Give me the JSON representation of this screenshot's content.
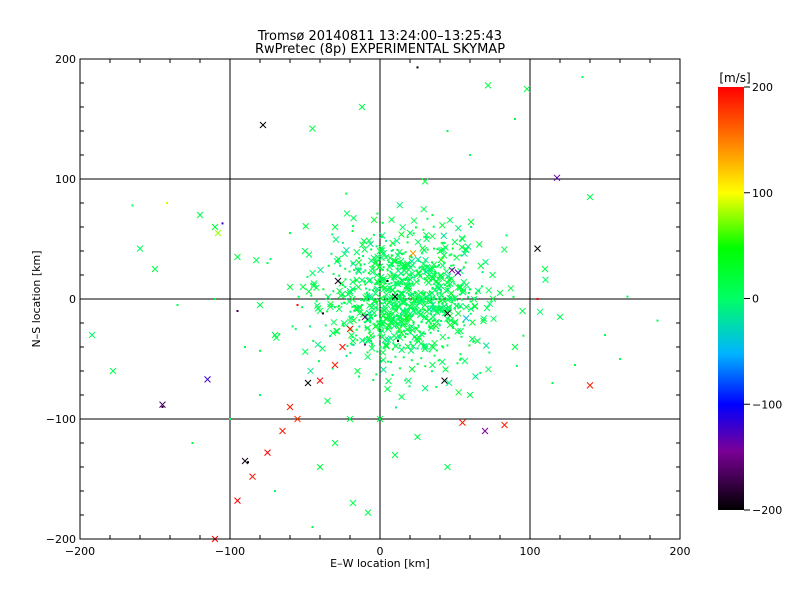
{
  "chart_data": {
    "type": "scatter",
    "title": "Tromsø 20140811 13:24:00–13:25:43",
    "subtitle": "RwPretec (8p) EXPERIMENTAL SKYMAP",
    "xlabel": "E–W location [km]",
    "ylabel": "N–S location [km]",
    "xlim": [
      -200,
      200
    ],
    "ylim": [
      -200,
      200
    ],
    "xticks": [
      "−200",
      "−100",
      "0",
      "100",
      "200"
    ],
    "yticks": [
      "−200",
      "−100",
      "0",
      "100",
      "200"
    ],
    "grid": true,
    "colorbar": {
      "unit": "[m/s]",
      "range": [
        -200,
        200
      ],
      "ticks": [
        "−200",
        "−100",
        "0",
        "100",
        "200"
      ]
    },
    "marker_types": [
      "x",
      "dot"
    ],
    "series": [
      {
        "marker": "x",
        "points": [
          [
            -192,
            -30,
            0
          ],
          [
            -178,
            -60,
            10
          ],
          [
            -160,
            42,
            5
          ],
          [
            -108,
            55,
            80
          ],
          [
            -90,
            -135,
            -190
          ],
          [
            -78,
            145,
            -200
          ],
          [
            -45,
            142,
            15
          ],
          [
            -12,
            160,
            10
          ],
          [
            30,
            98,
            20
          ],
          [
            98,
            175,
            15
          ],
          [
            118,
            101,
            -130
          ],
          [
            140,
            85,
            10
          ],
          [
            105,
            42,
            -200
          ],
          [
            72,
            178,
            15
          ],
          [
            -115,
            -67,
            -120
          ],
          [
            -145,
            -88,
            -160
          ],
          [
            -55,
            -100,
            180
          ],
          [
            -75,
            -128,
            200
          ],
          [
            -85,
            -148,
            190
          ],
          [
            -95,
            -168,
            200
          ],
          [
            -110,
            -200,
            200
          ],
          [
            -65,
            -110,
            190
          ],
          [
            -48,
            -70,
            -200
          ],
          [
            -40,
            -68,
            200
          ],
          [
            -60,
            -90,
            190
          ],
          [
            -30,
            -55,
            190
          ],
          [
            -25,
            -40,
            195
          ],
          [
            -20,
            -25,
            190
          ],
          [
            -10,
            -15,
            -160
          ],
          [
            -28,
            15,
            -190
          ],
          [
            10,
            2,
            -200
          ],
          [
            22,
            38,
            140
          ],
          [
            48,
            24,
            -140
          ],
          [
            52,
            22,
            -130
          ],
          [
            45,
            -12,
            -190
          ],
          [
            43,
            -68,
            -200
          ],
          [
            70,
            -110,
            -140
          ],
          [
            83,
            -105,
            190
          ],
          [
            55,
            -103,
            190
          ],
          [
            140,
            -72,
            190
          ],
          [
            -18,
            -170,
            15
          ],
          [
            -8,
            -178,
            10
          ],
          [
            -40,
            -140,
            20
          ],
          [
            -30,
            -120,
            15
          ],
          [
            0,
            -100,
            10
          ],
          [
            25,
            -115,
            15
          ],
          [
            60,
            -80,
            15
          ],
          [
            90,
            -40,
            15
          ],
          [
            95,
            -10,
            10
          ],
          [
            -40,
            -10,
            10
          ],
          [
            -60,
            10,
            15
          ],
          [
            -50,
            40,
            10
          ],
          [
            -30,
            60,
            15
          ],
          [
            20,
            55,
            10
          ],
          [
            40,
            40,
            15
          ],
          [
            75,
            20,
            10
          ],
          [
            110,
            25,
            15
          ],
          [
            120,
            -15,
            10
          ],
          [
            -15,
            -60,
            15
          ],
          [
            -35,
            -85,
            10
          ],
          [
            5,
            -75,
            15
          ],
          [
            35,
            -55,
            10
          ],
          [
            65,
            -35,
            15
          ],
          [
            80,
            5,
            10
          ],
          [
            -5,
            25,
            15
          ],
          [
            15,
            15,
            10
          ],
          [
            30,
            -5,
            15
          ],
          [
            -20,
            5,
            10
          ],
          [
            0,
            40,
            15
          ],
          [
            55,
            50,
            10
          ],
          [
            -70,
            -30,
            15
          ],
          [
            -80,
            -5,
            10
          ],
          [
            -95,
            35,
            15
          ],
          [
            -110,
            60,
            20
          ],
          [
            -120,
            70,
            10
          ],
          [
            -150,
            25,
            15
          ],
          [
            -20,
            -100,
            10
          ],
          [
            10,
            -130,
            15
          ],
          [
            45,
            -140,
            10
          ]
        ]
      },
      {
        "marker": "dot",
        "points": [
          [
            -165,
            78,
            10
          ],
          [
            -142,
            80,
            90
          ],
          [
            -135,
            -5,
            5
          ],
          [
            -145,
            -90,
            -180
          ],
          [
            -95,
            -10,
            -170
          ],
          [
            -80,
            -80,
            5
          ],
          [
            -88,
            -136,
            -200
          ],
          [
            -70,
            -160,
            5
          ],
          [
            -55,
            -5,
            195
          ],
          [
            -10,
            -38,
            -140
          ],
          [
            25,
            193,
            -200
          ],
          [
            45,
            140,
            15
          ],
          [
            60,
            120,
            10
          ],
          [
            90,
            150,
            15
          ],
          [
            135,
            185,
            10
          ],
          [
            -105,
            63,
            -120
          ],
          [
            -110,
            0,
            20
          ],
          [
            -90,
            -40,
            15
          ],
          [
            185,
            -18,
            10
          ],
          [
            165,
            2,
            15
          ],
          [
            150,
            -30,
            10
          ],
          [
            130,
            -55,
            15
          ],
          [
            160,
            -50,
            10
          ],
          [
            -60,
            55,
            15
          ],
          [
            -75,
            30,
            10
          ],
          [
            35,
            70,
            15
          ],
          [
            -38,
            -12,
            -190
          ],
          [
            12,
            -35,
            -200
          ],
          [
            5,
            15,
            -200
          ],
          [
            -45,
            -190,
            15
          ],
          [
            105,
            0,
            200
          ],
          [
            115,
            -70,
            15
          ],
          [
            -125,
            -120,
            15
          ],
          [
            -100,
            -100,
            10
          ]
        ]
      }
    ],
    "dense_cluster": {
      "center": [
        15,
        0
      ],
      "spread": [
        28,
        28
      ],
      "count": 950,
      "velocity_mean": 8,
      "velocity_spread": 12
    }
  }
}
